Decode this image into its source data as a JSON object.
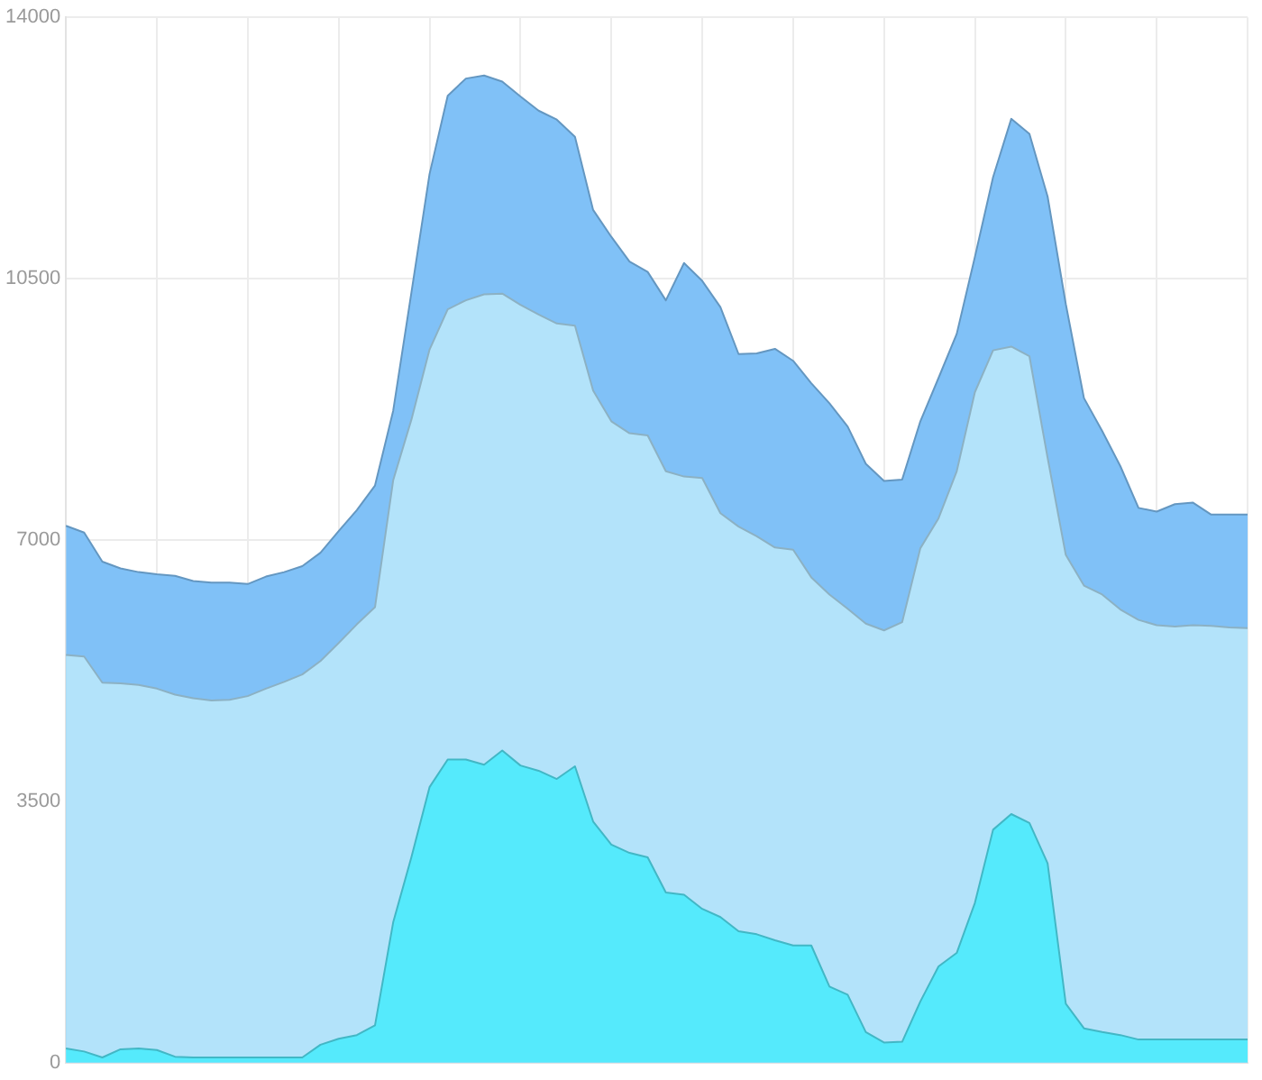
{
  "chart_data": {
    "type": "area",
    "categories": [
      null,
      null,
      null,
      null,
      null,
      null,
      null,
      null,
      null,
      null,
      null,
      null,
      null,
      null,
      null,
      null,
      null,
      null,
      null,
      null,
      null,
      null,
      null,
      null,
      null,
      null,
      null,
      null,
      null,
      null,
      null,
      null,
      null,
      null,
      null,
      null,
      null,
      null,
      null,
      null,
      null,
      null,
      null,
      null,
      null,
      null,
      null,
      null,
      null,
      null,
      null,
      null,
      null,
      null,
      null,
      null,
      null,
      null,
      null,
      null,
      null,
      null,
      null,
      null,
      null,
      null
    ],
    "ylim": [
      0,
      14000
    ],
    "yticks": [
      0,
      3500,
      7000,
      10500,
      14000
    ],
    "grid": true,
    "legend": false,
    "marker": "none",
    "line_style": "solid",
    "tick_labels": "y",
    "series": [
      {
        "color": "#80c1f7",
        "values": [
          7190,
          7100,
          6710,
          6620,
          6570,
          6540,
          6520,
          6450,
          6430,
          6430,
          6410,
          6510,
          6570,
          6650,
          6830,
          7120,
          7400,
          7730,
          8730,
          10310,
          11900,
          12950,
          13180,
          13220,
          13140,
          12940,
          12750,
          12630,
          12400,
          11420,
          11060,
          10730,
          10590,
          10210,
          10710,
          10470,
          10120,
          9490,
          9500,
          9560,
          9400,
          9100,
          8830,
          8520,
          8020,
          7790,
          7810,
          8590,
          9170,
          9760,
          10790,
          11860,
          12640,
          12440,
          11600,
          10160,
          8900,
          8460,
          7990,
          7430,
          7380,
          7480,
          7500,
          7340,
          7340,
          7340
        ]
      },
      {
        "color": "#b3e3fa",
        "values": [
          5460,
          5440,
          5090,
          5080,
          5060,
          5010,
          4930,
          4880,
          4850,
          4860,
          4910,
          5010,
          5100,
          5200,
          5380,
          5620,
          5870,
          6100,
          7800,
          8610,
          9550,
          10090,
          10210,
          10290,
          10300,
          10150,
          10020,
          9900,
          9870,
          9000,
          8590,
          8430,
          8400,
          7920,
          7850,
          7830,
          7360,
          7180,
          7050,
          6900,
          6870,
          6500,
          6270,
          6080,
          5880,
          5790,
          5900,
          6890,
          7290,
          7920,
          8980,
          9540,
          9590,
          9460,
          8100,
          6800,
          6390,
          6270,
          6070,
          5930,
          5860,
          5840,
          5860,
          5850,
          5830,
          5820
        ]
      },
      {
        "color": "#55eafc",
        "values": [
          190,
          150,
          70,
          180,
          190,
          170,
          80,
          70,
          70,
          70,
          70,
          70,
          70,
          70,
          240,
          320,
          370,
          500,
          1880,
          2750,
          3690,
          4060,
          4060,
          3990,
          4180,
          3980,
          3910,
          3800,
          3970,
          3230,
          2920,
          2810,
          2750,
          2280,
          2250,
          2060,
          1950,
          1760,
          1720,
          1640,
          1570,
          1570,
          1020,
          910,
          410,
          270,
          280,
          820,
          1290,
          1470,
          2140,
          3120,
          3330,
          3210,
          2670,
          790,
          460,
          410,
          370,
          310,
          310,
          310,
          310,
          310,
          310,
          310
        ]
      }
    ]
  }
}
